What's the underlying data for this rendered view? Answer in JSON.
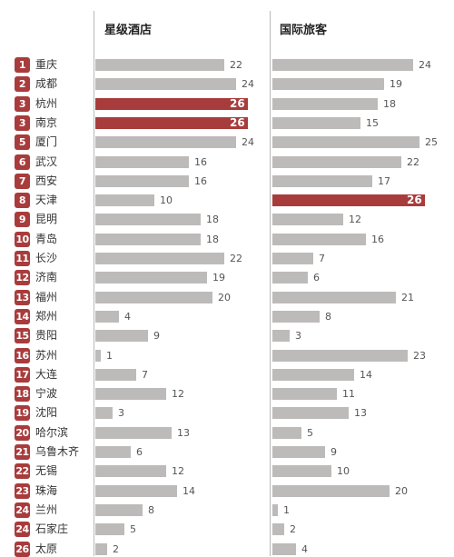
{
  "chart_data": {
    "type": "bar",
    "headers": {
      "hotels": "星级酒店",
      "tourists": "国际旅客"
    },
    "colors": {
      "bar": "#bdbaba",
      "highlight": "#a83c3c",
      "badge": "#a83c3c",
      "grid": "#b9b9b9"
    },
    "xlim": [
      0,
      26
    ],
    "rows": [
      {
        "rank": "1",
        "city": "重庆",
        "hotels": 22,
        "tourists": 24
      },
      {
        "rank": "2",
        "city": "成都",
        "hotels": 24,
        "tourists": 19
      },
      {
        "rank": "3",
        "city": "杭州",
        "hotels": 26,
        "tourists": 18,
        "hotels_highlight": true
      },
      {
        "rank": "3",
        "city": "南京",
        "hotels": 26,
        "tourists": 15,
        "hotels_highlight": true
      },
      {
        "rank": "5",
        "city": "厦门",
        "hotels": 24,
        "tourists": 25
      },
      {
        "rank": "6",
        "city": "武汉",
        "hotels": 16,
        "tourists": 22
      },
      {
        "rank": "7",
        "city": "西安",
        "hotels": 16,
        "tourists": 17
      },
      {
        "rank": "8",
        "city": "天津",
        "hotels": 10,
        "tourists": 26,
        "tourists_highlight": true
      },
      {
        "rank": "9",
        "city": "昆明",
        "hotels": 18,
        "tourists": 12
      },
      {
        "rank": "10",
        "city": "青岛",
        "hotels": 18,
        "tourists": 16
      },
      {
        "rank": "11",
        "city": "长沙",
        "hotels": 22,
        "tourists": 7
      },
      {
        "rank": "12",
        "city": "济南",
        "hotels": 19,
        "tourists": 6
      },
      {
        "rank": "13",
        "city": "福州",
        "hotels": 20,
        "tourists": 21
      },
      {
        "rank": "14",
        "city": "郑州",
        "hotels": 4,
        "tourists": 8
      },
      {
        "rank": "15",
        "city": "贵阳",
        "hotels": 9,
        "tourists": 3
      },
      {
        "rank": "16",
        "city": "苏州",
        "hotels": 1,
        "tourists": 23
      },
      {
        "rank": "17",
        "city": "大连",
        "hotels": 7,
        "tourists": 14
      },
      {
        "rank": "18",
        "city": "宁波",
        "hotels": 12,
        "tourists": 11
      },
      {
        "rank": "19",
        "city": "沈阳",
        "hotels": 3,
        "tourists": 13
      },
      {
        "rank": "20",
        "city": "哈尔滨",
        "hotels": 13,
        "tourists": 5
      },
      {
        "rank": "21",
        "city": "乌鲁木齐",
        "hotels": 6,
        "tourists": 9
      },
      {
        "rank": "22",
        "city": "无锡",
        "hotels": 12,
        "tourists": 10
      },
      {
        "rank": "23",
        "city": "珠海",
        "hotels": 14,
        "tourists": 20
      },
      {
        "rank": "24",
        "city": "兰州",
        "hotels": 8,
        "tourists": 1
      },
      {
        "rank": "24",
        "city": "石家庄",
        "hotels": 5,
        "tourists": 2
      },
      {
        "rank": "26",
        "city": "太原",
        "hotels": 2,
        "tourists": 4
      }
    ]
  }
}
